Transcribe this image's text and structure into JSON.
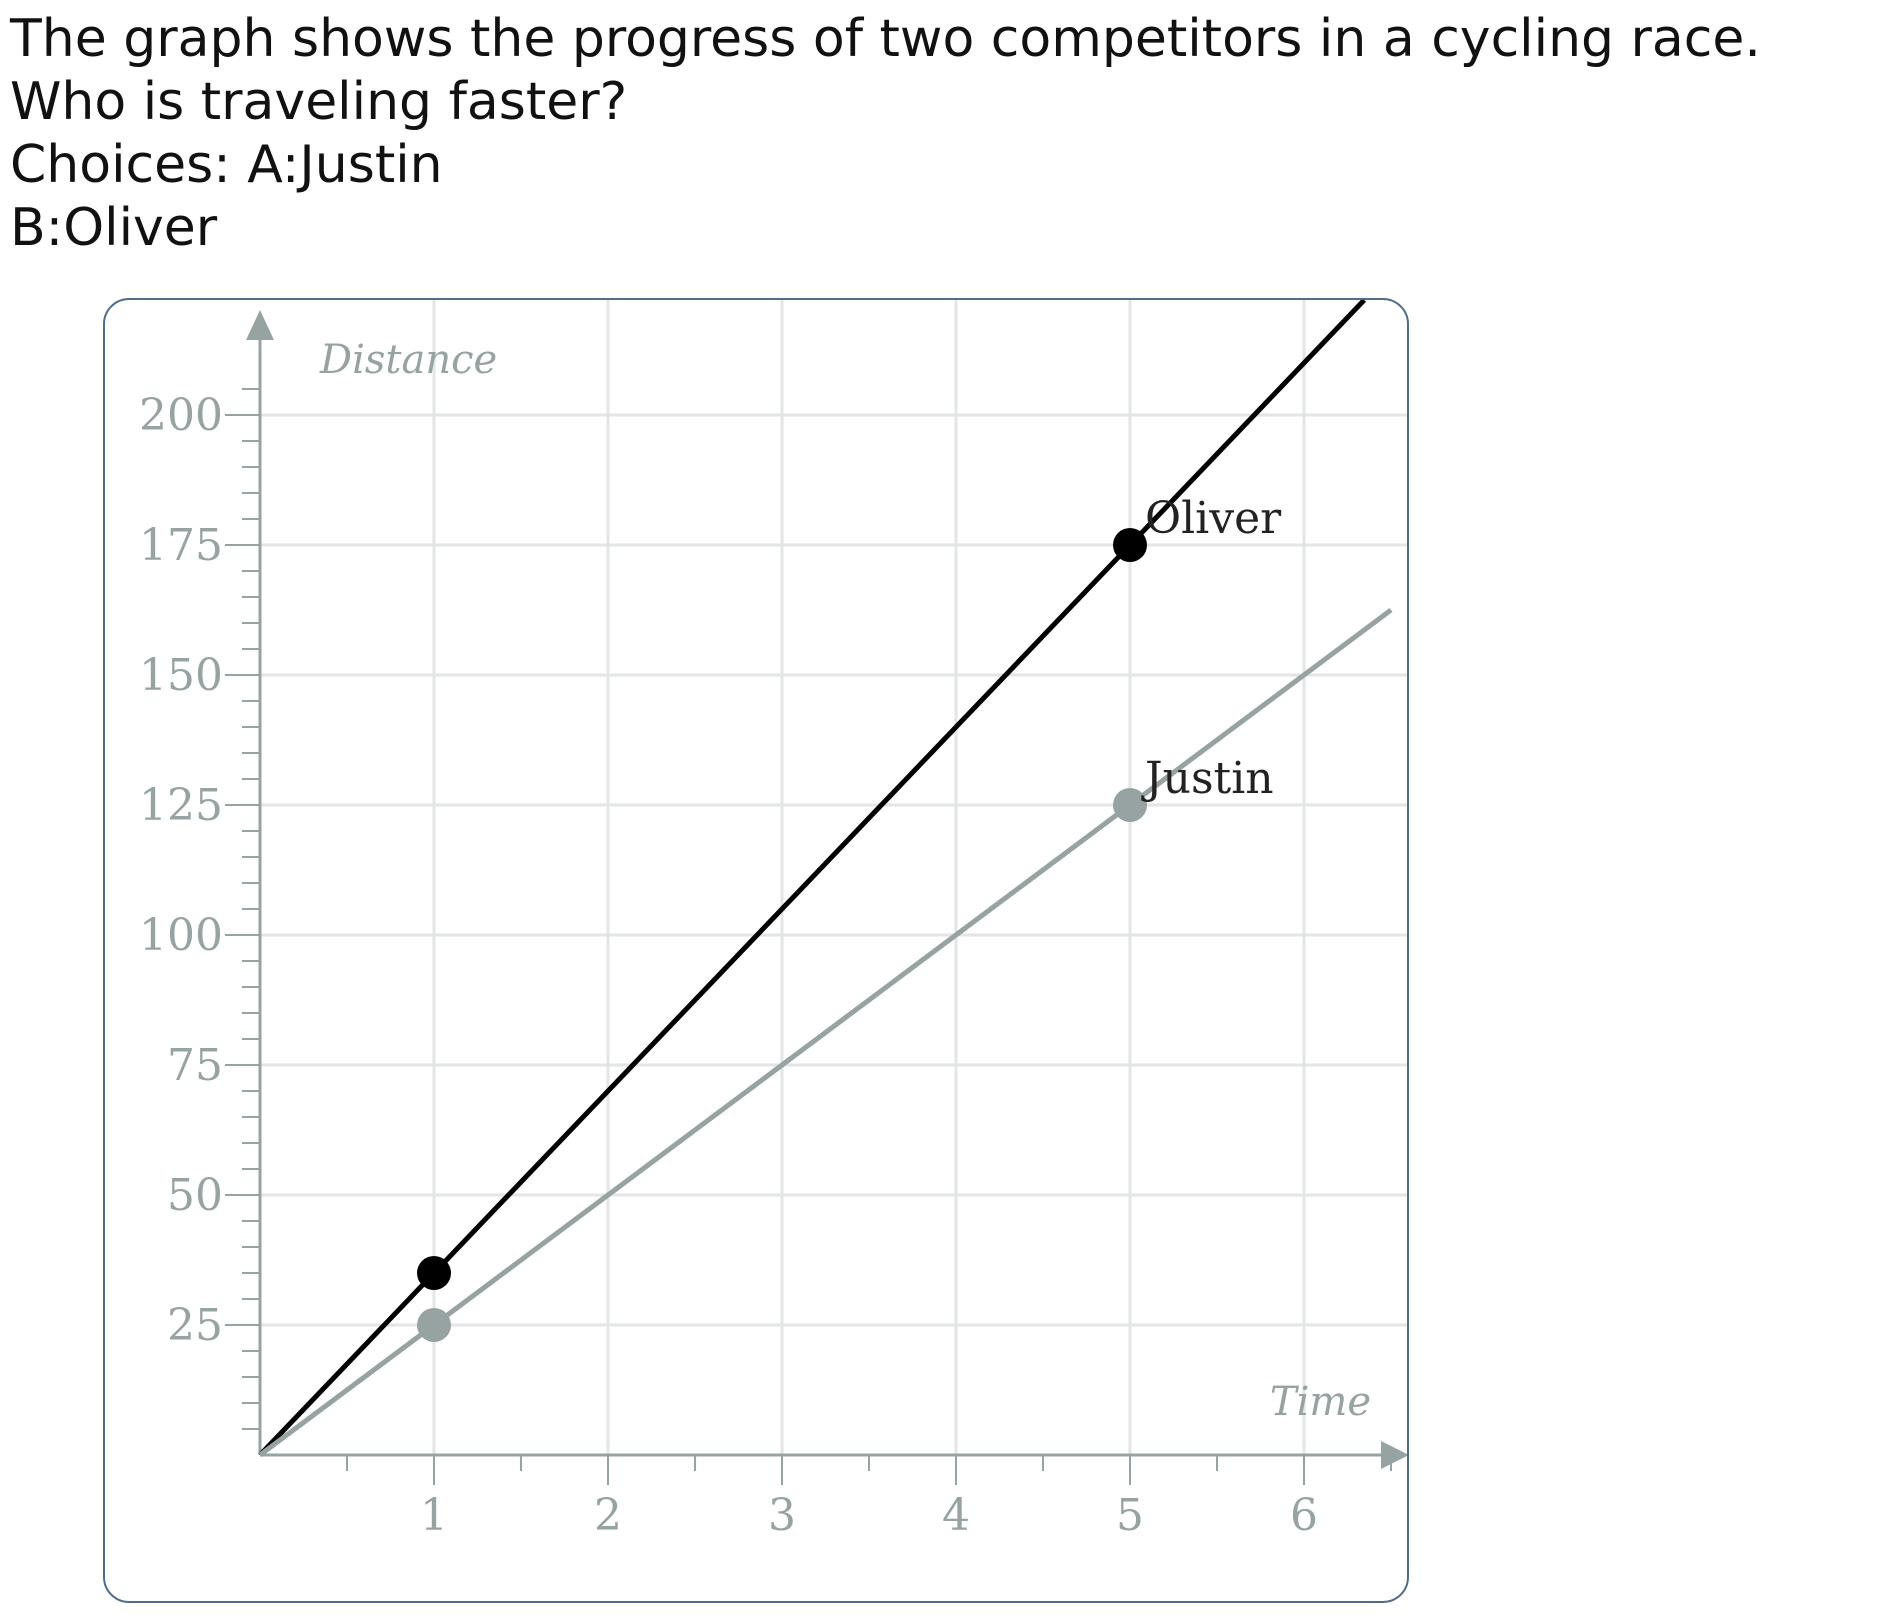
{
  "question": {
    "line1": "The graph shows the progress of two competitors in a cycling race.",
    "line2": "Who is traveling faster?",
    "line3": "Choices: A:Justin",
    "line4": "B:Oliver"
  },
  "chart_data": {
    "type": "line",
    "xlabel": "Time",
    "ylabel": "Distance",
    "xlim": [
      0,
      6.5
    ],
    "ylim": [
      0,
      225
    ],
    "x_ticks": [
      1,
      2,
      3,
      4,
      5,
      6
    ],
    "y_ticks": [
      25,
      50,
      75,
      100,
      125,
      150,
      175,
      200
    ],
    "grid": true,
    "series": [
      {
        "name": "Oliver",
        "slope": 35,
        "points": [
          {
            "x": 1,
            "y": 35
          },
          {
            "x": 5,
            "y": 175
          }
        ],
        "color": "#000000"
      },
      {
        "name": "Justin",
        "slope": 25,
        "points": [
          {
            "x": 1,
            "y": 25
          },
          {
            "x": 5,
            "y": 125
          }
        ],
        "color": "#97a2a2"
      }
    ]
  }
}
